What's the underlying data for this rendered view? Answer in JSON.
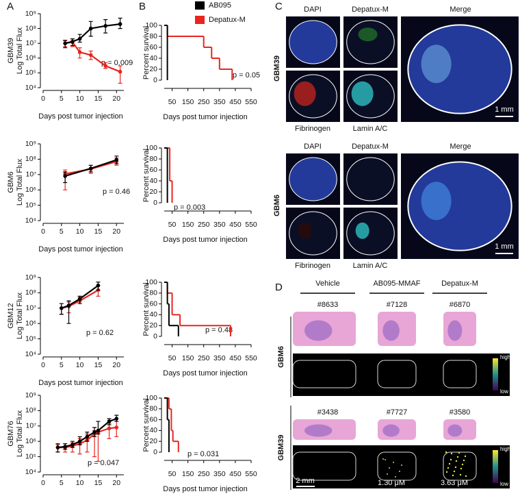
{
  "panel_labels": [
    "A",
    "B",
    "C",
    "D"
  ],
  "chart_data": [
    {
      "type": "line",
      "group": "GBM39",
      "ylabel": "Log Total Flux",
      "xlabel": "Days post tumor injection",
      "annotation": "p = 0.009",
      "log_scale": true,
      "xlim": [
        0,
        22
      ],
      "xticks": [
        0,
        5,
        10,
        15,
        20
      ],
      "ylim": [
        10000,
        1000000000
      ],
      "yticks": [
        {
          "value": 10000,
          "label": "10⁴"
        },
        {
          "value": 100000,
          "label": "10⁵"
        },
        {
          "value": 1000000,
          "label": "10⁶"
        },
        {
          "value": 10000000,
          "label": "10⁷"
        },
        {
          "value": 100000000,
          "label": "10⁸"
        },
        {
          "value": 1000000000,
          "label": "10⁹"
        }
      ],
      "x": [
        6,
        8,
        10,
        13,
        17,
        21
      ],
      "series": [
        {
          "color": "#000000",
          "values": [
            10000000,
            13000000,
            20000000,
            100000000,
            150000000,
            200000000
          ],
          "lower": [
            5000000,
            7000000,
            12000000,
            30000000,
            50000000,
            100000000
          ],
          "upper": [
            16000000,
            20000000,
            40000000,
            300000000,
            400000000,
            500000000
          ]
        },
        {
          "color": "#e8251f",
          "values": [
            10000000,
            12000000,
            2500000,
            1600000,
            300000,
            120000
          ],
          "lower": [
            6000000,
            6000000,
            1000000,
            800000,
            200000,
            20000
          ],
          "upper": [
            15000000,
            20000000,
            5000000,
            3000000,
            500000,
            300000
          ]
        }
      ]
    },
    {
      "type": "line",
      "group": "GBM6",
      "ylabel": "Log Total Flux",
      "xlabel": "Days post tumor injection",
      "annotation": "p = 0.46",
      "log_scale": true,
      "xlim": [
        0,
        22
      ],
      "xticks": [
        0,
        5,
        10,
        15,
        20
      ],
      "ylim": [
        10000,
        1000000000
      ],
      "yticks": [
        {
          "value": 10000,
          "label": "10⁴"
        },
        {
          "value": 100000,
          "label": "10⁵"
        },
        {
          "value": 1000000,
          "label": "10⁶"
        },
        {
          "value": 10000000,
          "label": "10⁷"
        },
        {
          "value": 100000000,
          "label": "10⁸"
        },
        {
          "value": 1000000000,
          "label": "10⁹"
        }
      ],
      "x": [
        6,
        13,
        20
      ],
      "series": [
        {
          "color": "#000000",
          "values": [
            8000000,
            25000000,
            90000000
          ],
          "lower": [
            3000000,
            15000000,
            50000000
          ],
          "upper": [
            15000000,
            40000000,
            160000000
          ]
        },
        {
          "color": "#e8251f",
          "values": [
            11000000,
            23000000,
            70000000
          ],
          "lower": [
            1000000,
            12000000,
            40000000
          ],
          "upper": [
            20000000,
            40000000,
            120000000
          ]
        }
      ]
    },
    {
      "type": "line",
      "group": "GBM12",
      "ylabel": "Log Total Flux",
      "xlabel": "Days post tumor injection",
      "annotation": "p = 0.62",
      "log_scale": true,
      "xlim": [
        0,
        22
      ],
      "xticks": [
        0,
        5,
        10,
        15,
        20
      ],
      "ylim": [
        10000,
        1000000000
      ],
      "yticks": [
        {
          "value": 10000,
          "label": "10⁴"
        },
        {
          "value": 100000,
          "label": "10⁵"
        },
        {
          "value": 1000000,
          "label": "10⁶"
        },
        {
          "value": 10000000,
          "label": "10⁷"
        },
        {
          "value": 100000000,
          "label": "10⁸"
        },
        {
          "value": 1000000000,
          "label": "10⁹"
        }
      ],
      "x": [
        5,
        7,
        10,
        15
      ],
      "series": [
        {
          "color": "#000000",
          "values": [
            10000000,
            15000000,
            40000000,
            300000000
          ],
          "lower": [
            4000000,
            1000000,
            20000000,
            150000000
          ],
          "upper": [
            20000000,
            30000000,
            60000000,
            500000000
          ]
        },
        {
          "color": "#e8251f",
          "values": [
            10000000,
            13000000,
            30000000,
            150000000
          ],
          "lower": [
            4000000,
            5000000,
            20000000,
            60000000
          ],
          "upper": [
            20000000,
            25000000,
            50000000,
            300000000
          ]
        }
      ]
    },
    {
      "type": "line",
      "group": "GBM76",
      "ylabel": "Log Total Flux",
      "xlabel": "Days post tumor injection",
      "annotation": "p = 0.047",
      "log_scale": true,
      "xlim": [
        0,
        22
      ],
      "xticks": [
        0,
        5,
        10,
        15,
        20
      ],
      "ylim": [
        10000,
        1000000000
      ],
      "yticks": [
        {
          "value": 10000,
          "label": "10⁴"
        },
        {
          "value": 100000,
          "label": "10⁵"
        },
        {
          "value": 1000000,
          "label": "10⁶"
        },
        {
          "value": 10000000,
          "label": "10⁷"
        },
        {
          "value": 100000000,
          "label": "10⁸"
        },
        {
          "value": 1000000000,
          "label": "10⁹"
        }
      ],
      "x": [
        4,
        6,
        8,
        10,
        12,
        14,
        15,
        18,
        20
      ],
      "series": [
        {
          "color": "#000000",
          "values": [
            400000,
            450000,
            600000,
            1000000,
            2000000,
            4000000,
            5000000,
            20000000,
            30000000
          ],
          "lower": [
            200000,
            300000,
            400000,
            600000,
            1000000,
            2000000,
            3000000,
            12000000,
            20000000
          ],
          "upper": [
            700000,
            700000,
            1000000,
            2000000,
            4000000,
            8000000,
            20000000,
            30000000,
            50000000
          ]
        },
        {
          "color": "#e8251f",
          "values": [
            400000,
            400000,
            500000,
            700000,
            1200000,
            3000000,
            4000000,
            7000000,
            8000000
          ],
          "lower": [
            200000,
            200000,
            200000,
            150000,
            200000,
            100000,
            50000,
            1500000,
            2000000
          ],
          "upper": [
            600000,
            700000,
            800000,
            1500000,
            3000000,
            5000000,
            20000000,
            15000000,
            20000000
          ]
        }
      ]
    },
    {
      "type": "step",
      "ylabel": "Percent survival",
      "xlabel": "Days post tumor injection",
      "annotation": "p = 0.05",
      "legend": "top-right",
      "xlim": [
        0,
        550
      ],
      "xticks": [
        50,
        150,
        250,
        350,
        450,
        550
      ],
      "ylim": [
        0,
        100
      ],
      "yticks": [
        0,
        20,
        40,
        60,
        80,
        100
      ],
      "series": [
        {
          "name": "AB095",
          "color": "#000000",
          "x": [
            0,
            20
          ],
          "values": [
            100,
            0
          ]
        },
        {
          "name": "Depatux-M",
          "color": "#e8251f",
          "x": [
            0,
            20,
            250,
            300,
            350,
            430
          ],
          "values": [
            100,
            80,
            60,
            40,
            20,
            0
          ]
        }
      ]
    },
    {
      "type": "step",
      "ylabel": "Percent survival",
      "xlabel": "Days post tumor injection",
      "annotation": "p = 0.003",
      "xlim": [
        0,
        550
      ],
      "xticks": [
        50,
        150,
        250,
        350,
        450,
        550
      ],
      "ylim": [
        0,
        100
      ],
      "yticks": [
        0,
        20,
        40,
        60,
        80,
        100
      ],
      "series": [
        {
          "color": "#000000",
          "x": [
            0,
            20
          ],
          "values": [
            100,
            0
          ]
        },
        {
          "color": "#e8251f",
          "x": [
            0,
            35,
            50
          ],
          "values": [
            100,
            40,
            0
          ]
        }
      ]
    },
    {
      "type": "step",
      "ylabel": "Percent survival",
      "xlabel": "Days post tumor injection",
      "annotation": "p = 0.48",
      "xlim": [
        0,
        550
      ],
      "xticks": [
        50,
        150,
        250,
        350,
        450,
        550
      ],
      "ylim": [
        0,
        100
      ],
      "yticks": [
        0,
        20,
        40,
        60,
        80,
        100
      ],
      "series": [
        {
          "color": "#000000",
          "x": [
            0,
            20,
            30,
            90
          ],
          "values": [
            100,
            60,
            20,
            0
          ]
        },
        {
          "color": "#e8251f",
          "x": [
            0,
            20,
            50,
            100,
            420
          ],
          "values": [
            100,
            80,
            40,
            20,
            0
          ]
        }
      ]
    },
    {
      "type": "step",
      "ylabel": "Percent survival",
      "xlabel": "Days post tumor injection",
      "annotation": "p = 0.031",
      "xlim": [
        0,
        550
      ],
      "xticks": [
        50,
        150,
        250,
        350,
        450,
        550
      ],
      "ylim": [
        0,
        100
      ],
      "yticks": [
        0,
        20,
        40,
        60,
        80,
        100
      ],
      "series": [
        {
          "color": "#000000",
          "x": [
            0,
            20,
            30
          ],
          "values": [
            100,
            60,
            0
          ]
        },
        {
          "color": "#e8251f",
          "x": [
            0,
            30,
            45,
            55,
            90
          ],
          "values": [
            100,
            80,
            40,
            20,
            0
          ]
        }
      ]
    }
  ],
  "panel_c": {
    "rows": [
      {
        "group": "GBM39",
        "tiles": [
          "DAPI",
          "Depatux-M",
          "Merge",
          "Fibrinogen",
          "Lamin A/C"
        ],
        "scale": "1 mm"
      },
      {
        "group": "GBM6",
        "tiles": [
          "DAPI",
          "Depatux-M",
          "Merge",
          "Fibrinogen",
          "Lamin A/C"
        ],
        "scale": "1 mm"
      }
    ]
  },
  "panel_d": {
    "columns": [
      "Vehicle",
      "AB095-MMAF",
      "Depatux-M"
    ],
    "rows": [
      {
        "group": "GBM6",
        "ids": [
          "#8633",
          "#7128",
          "#6870"
        ]
      },
      {
        "group": "GBM39",
        "ids": [
          "#3438",
          "#7727",
          "#3580"
        ],
        "concentrations": [
          "1.30 μM",
          "3.63 μM"
        ]
      }
    ],
    "colorbar": [
      "high",
      "low"
    ],
    "scale": "2 mm"
  }
}
